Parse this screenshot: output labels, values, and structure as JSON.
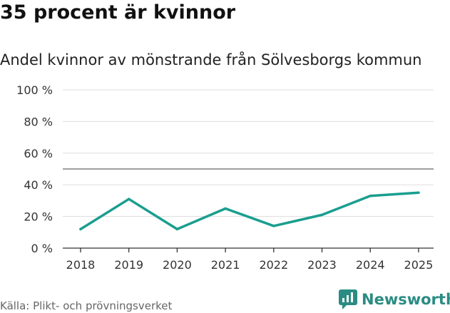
{
  "header": {
    "title": "35 procent är kvinnor",
    "subtitle": "Andel kvinnor av mönstrande från Sölvesborgs kommun"
  },
  "footer": {
    "source": "Källa: Plikt- och prövningsverket",
    "brand": "Newsworthy"
  },
  "colors": {
    "series": "#1a9e8f",
    "grid": "#dddddd",
    "reference": "#666666",
    "brand": "#2a8c83"
  },
  "chart_data": {
    "type": "line",
    "title": "35 procent är kvinnor",
    "subtitle": "Andel kvinnor av mönstrande från Sölvesborgs kommun",
    "xlabel": "",
    "ylabel": "",
    "x": [
      "2018",
      "2019",
      "2020",
      "2021",
      "2022",
      "2023",
      "2024",
      "2025"
    ],
    "series": [
      {
        "values": [
          12,
          31,
          12,
          25,
          14,
          21,
          33,
          35
        ]
      }
    ],
    "ylim": [
      0,
      100
    ],
    "yticks": [
      0,
      20,
      40,
      60,
      80,
      100
    ],
    "ytick_labels": [
      "0 %",
      "20 %",
      "40 %",
      "60 %",
      "80 %",
      "100 %"
    ],
    "reference_line": 50,
    "grid": true,
    "legend": "none"
  }
}
